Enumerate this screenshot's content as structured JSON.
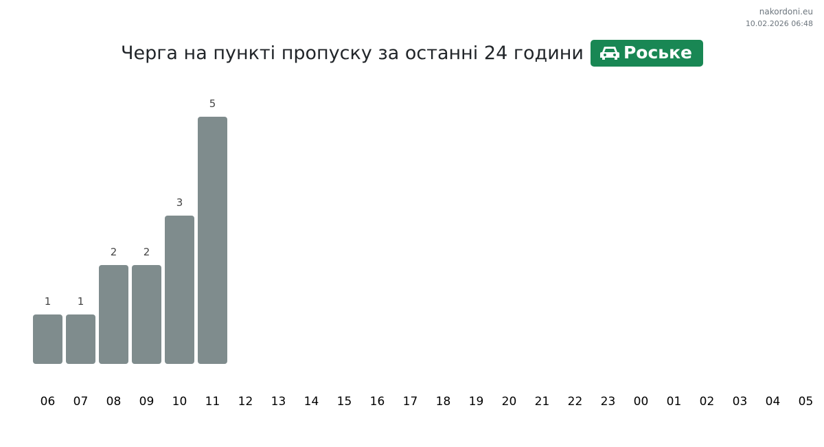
{
  "brand": {
    "site": "nakordoni.eu",
    "timestamp": "10.02.2026 06:48"
  },
  "header": {
    "title": "Черга на пункті пропуску за останні 24 години",
    "checkpoint": "Роське",
    "checkpoint_icon": "car-icon",
    "badge_color": "#198754"
  },
  "chart_data": {
    "type": "bar",
    "title": "Черга на пункті пропуску за останні 24 години",
    "categories": [
      "06",
      "07",
      "08",
      "09",
      "10",
      "11",
      "12",
      "13",
      "14",
      "15",
      "16",
      "17",
      "18",
      "19",
      "20",
      "21",
      "22",
      "23",
      "00",
      "01",
      "02",
      "03",
      "04",
      "05"
    ],
    "values": [
      1,
      1,
      2,
      2,
      3,
      5,
      null,
      null,
      null,
      null,
      null,
      null,
      null,
      null,
      null,
      null,
      null,
      null,
      null,
      null,
      null,
      null,
      null,
      null
    ],
    "bar_color": "#7f8c8d",
    "data_labels": true,
    "grid": false,
    "ylim": [
      0,
      5
    ]
  }
}
